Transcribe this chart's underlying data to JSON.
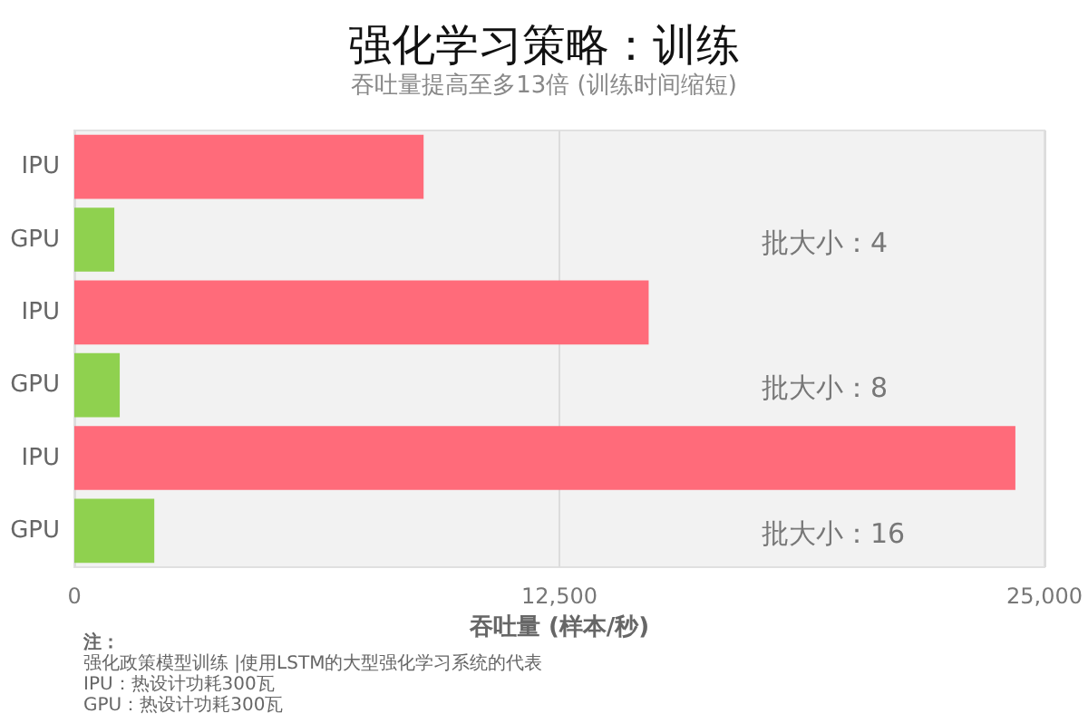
{
  "chart_data": {
    "type": "bar",
    "orientation": "horizontal",
    "title": "强化学习策略：训练",
    "subtitle": "吞吐量提高至多13倍 (训练时间缩短)",
    "xlabel": "吞吐量 (样本/秒)",
    "categories": [
      "IPU",
      "GPU",
      "IPU",
      "GPU",
      "IPU",
      "GPU"
    ],
    "values": [
      9000,
      1030,
      14800,
      1170,
      24250,
      2060
    ],
    "colors": [
      "#ff6b7a",
      "#8fd14f",
      "#ff6b7a",
      "#8fd14f",
      "#ff6b7a",
      "#8fd14f"
    ],
    "xlim": [
      0,
      25000
    ],
    "xticks": [
      0,
      {
        "value": 12500,
        "label": "12,500"
      },
      {
        "value": 25000,
        "label": "25,000"
      }
    ],
    "grid": "x",
    "annotations": [
      "批大小：4",
      "批大小：8",
      "批大小：16",
      "注：",
      "强化政策模型训练 |使用LSTM的大型强化学习系统的代表",
      "IPU：热设计功耗300瓦",
      "GPU：热设计功耗300瓦"
    ]
  }
}
